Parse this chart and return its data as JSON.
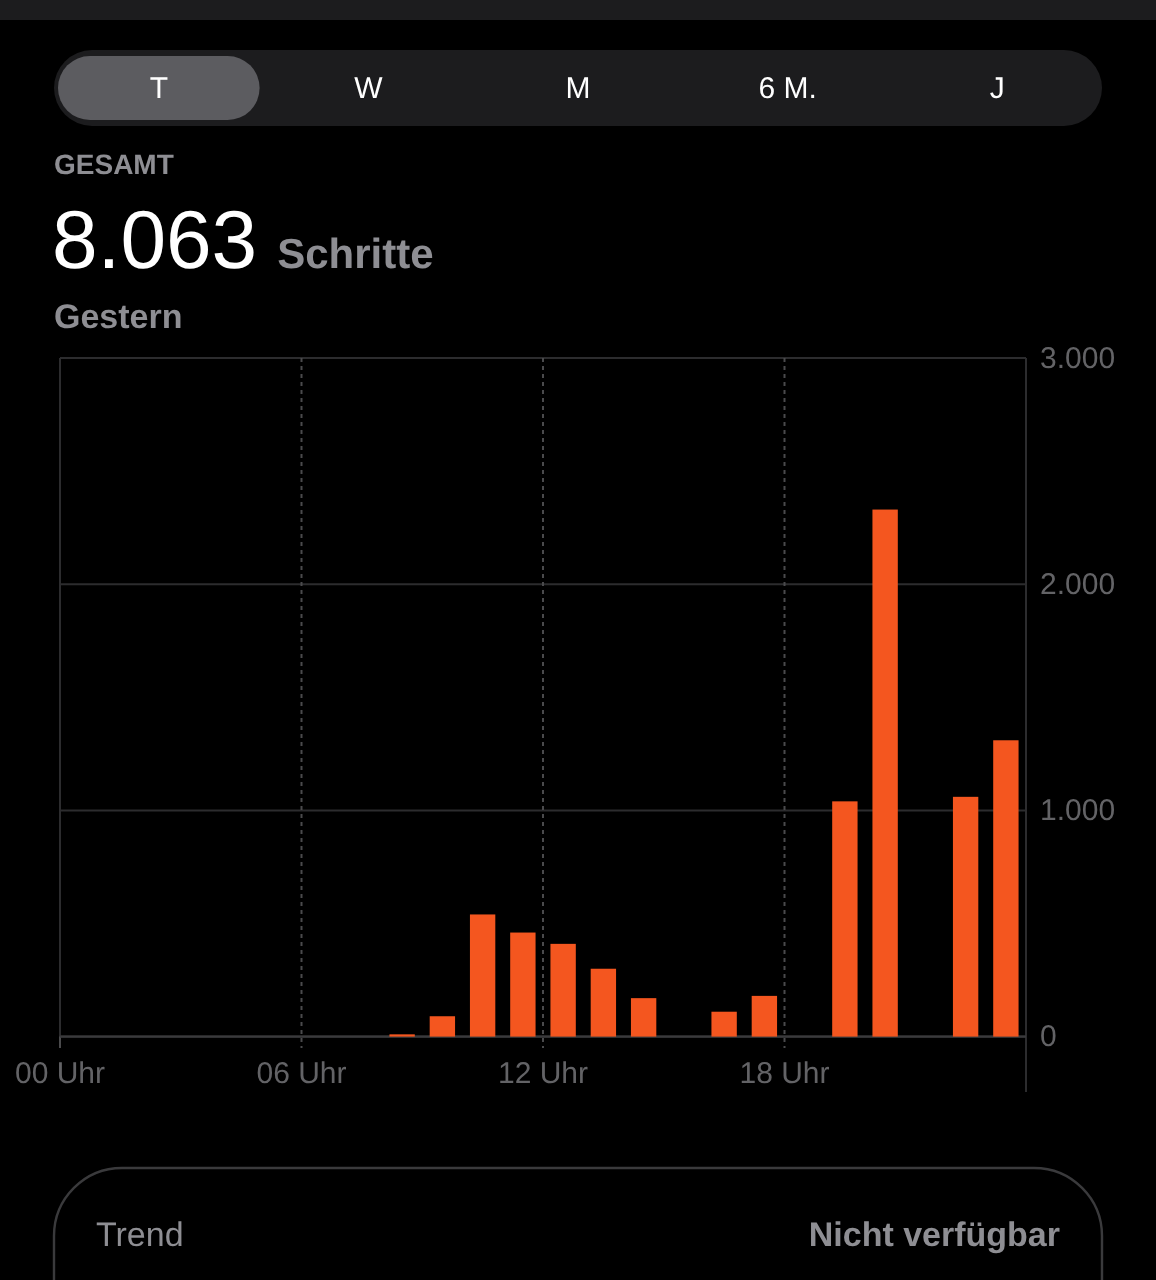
{
  "chart_data": {
    "type": "bar",
    "title": "8.063 Schritte",
    "subtitle": "Gestern",
    "annotations": [
      "T",
      "W",
      "M",
      "6 M.",
      "J",
      "GESAMT",
      "Trend",
      "Nicht verfügbar"
    ],
    "x": [
      8.5,
      9.5,
      10.5,
      11.5,
      12.5,
      13.5,
      14.5,
      16.5,
      17.5,
      19.5,
      20.5,
      22.5,
      23.5
    ],
    "values": [
      10,
      90,
      540,
      460,
      410,
      300,
      170,
      110,
      180,
      1040,
      2330,
      1060,
      1310
    ],
    "color": "#f4561f",
    "xlim": [
      0,
      24
    ],
    "xticks": [
      {
        "value": 0,
        "label": "00 Uhr"
      },
      {
        "value": 6,
        "label": "06 Uhr"
      },
      {
        "value": 12,
        "label": "12 Uhr"
      },
      {
        "value": 18,
        "label": "18 Uhr"
      }
    ],
    "ylim": [
      0,
      3000
    ],
    "yticks": [
      0,
      {
        "value": 1000,
        "label": "1.000"
      },
      {
        "value": 2000,
        "label": "2.000"
      },
      {
        "value": 3000,
        "label": "3.000"
      }
    ],
    "grid": true
  }
}
